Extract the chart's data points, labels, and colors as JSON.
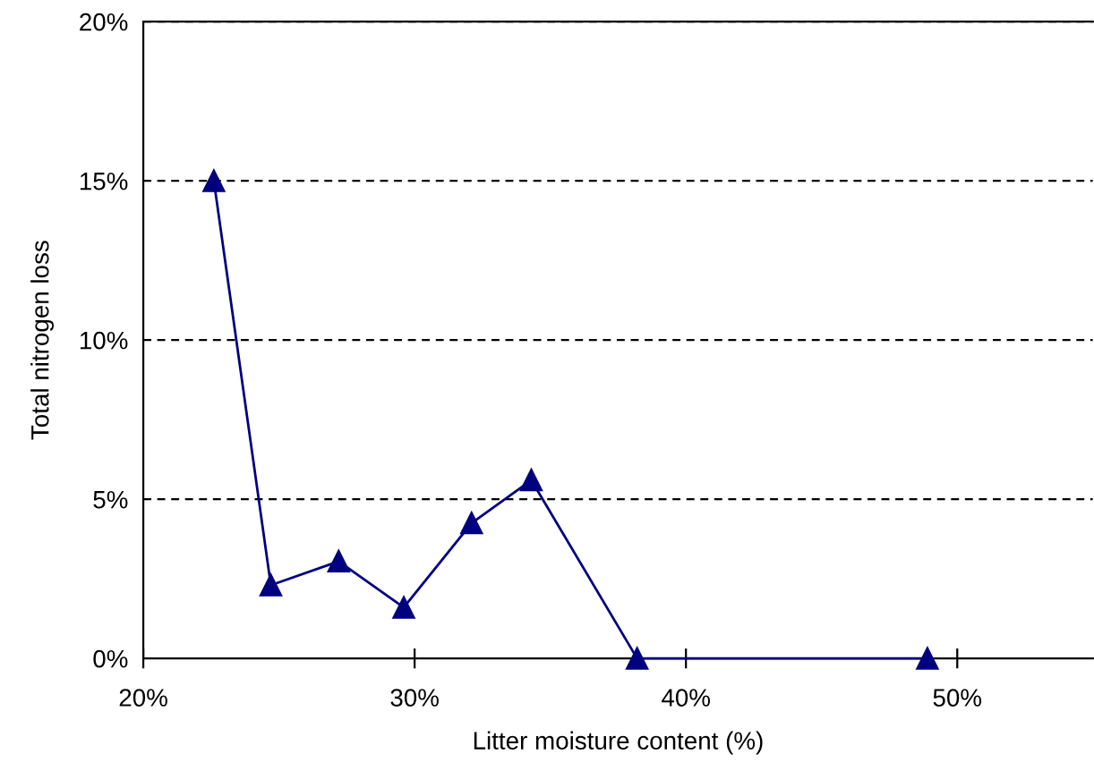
{
  "chart_data": {
    "type": "line",
    "xlabel": "Litter moisture content (%)",
    "ylabel": "Total nitrogen loss",
    "x": [
      22.6,
      24.7,
      27.2,
      29.6,
      32.1,
      34.3,
      38.2,
      48.9
    ],
    "series": [
      {
        "color": "#000080",
        "values": [
          15,
          2.3,
          3.05,
          1.6,
          4.25,
          5.6,
          0,
          0
        ]
      }
    ],
    "xlim": [
      20,
      55
    ],
    "ylim": [
      0,
      20
    ],
    "xticks": [
      {
        "value": 20,
        "label": "20%"
      },
      {
        "value": 30,
        "label": "30%"
      },
      {
        "value": 40,
        "label": "40%"
      },
      {
        "value": 50,
        "label": "50%"
      }
    ],
    "yticks": [
      {
        "value": 0,
        "label": "0%"
      },
      {
        "value": 5,
        "label": "5%"
      },
      {
        "value": 10,
        "label": "10%"
      },
      {
        "value": 15,
        "label": "15%"
      },
      {
        "value": 20,
        "label": "20%"
      }
    ],
    "grid": "y",
    "marker": "triangle",
    "line_style": "solid"
  }
}
